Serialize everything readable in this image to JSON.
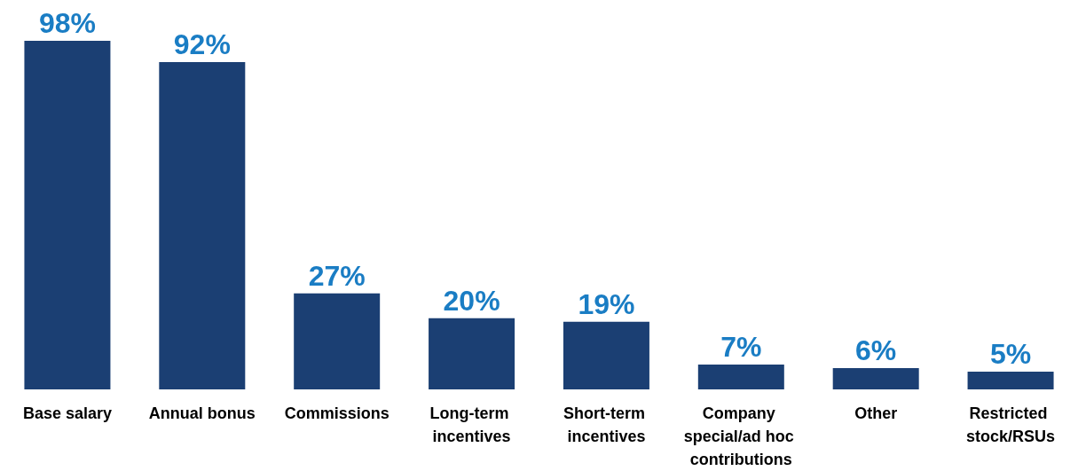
{
  "chart_data": {
    "type": "bar",
    "categories": [
      "Base salary",
      "Annual bonus",
      "Commissions",
      "Long-term incentives",
      "Short-term incentives",
      "Company special/ad hoc contributions",
      "Other",
      "Restricted stock/RSUs"
    ],
    "values": [
      98,
      92,
      27,
      20,
      19,
      7,
      6,
      5
    ],
    "color": "#1b3f73",
    "value_labels": [
      "98%",
      "92%",
      "27%",
      "20%",
      "19%",
      "7%",
      "6%",
      "5%"
    ]
  }
}
